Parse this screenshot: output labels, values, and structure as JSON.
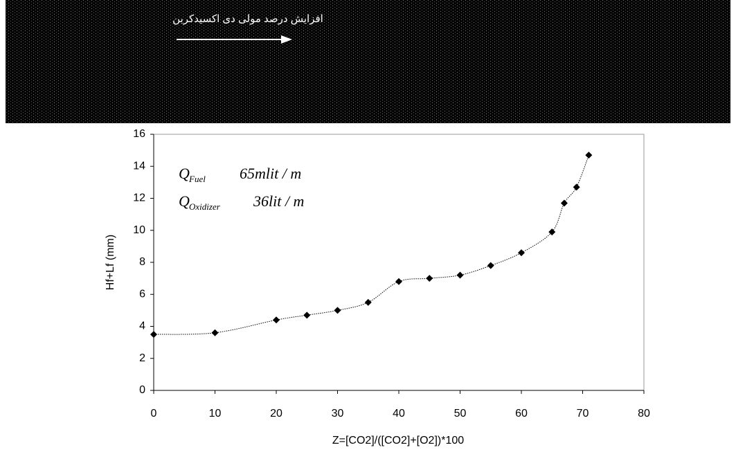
{
  "banner_text": "افزایش درصد مولی دی اکسیدکربن",
  "chart_data": {
    "type": "line",
    "x": [
      0,
      10,
      20,
      25,
      30,
      35,
      40,
      45,
      50,
      55,
      60,
      65,
      67,
      69,
      71
    ],
    "values": [
      3.5,
      3.6,
      4.4,
      4.7,
      5.0,
      5.5,
      6.8,
      7.0,
      7.2,
      7.8,
      8.6,
      9.9,
      11.7,
      12.7,
      14.7
    ],
    "color": "#000000",
    "xlim": [
      0,
      80
    ],
    "xticks": [
      0,
      10,
      20,
      30,
      40,
      50,
      60,
      70,
      80
    ],
    "ylim": [
      0,
      16
    ],
    "yticks": [
      0,
      2,
      4,
      6,
      8,
      10,
      12,
      14,
      16
    ],
    "xlabel": "Z=[CO2]/([CO2]+[O2])*100",
    "ylabel": "Hf+Lf (mm)",
    "annotations": [
      {
        "symbol": "Q",
        "subscript": "Fuel",
        "text": "65mlit / m"
      },
      {
        "symbol": "Q",
        "subscript": "Oxidizer",
        "text": "36lit / m"
      }
    ]
  }
}
